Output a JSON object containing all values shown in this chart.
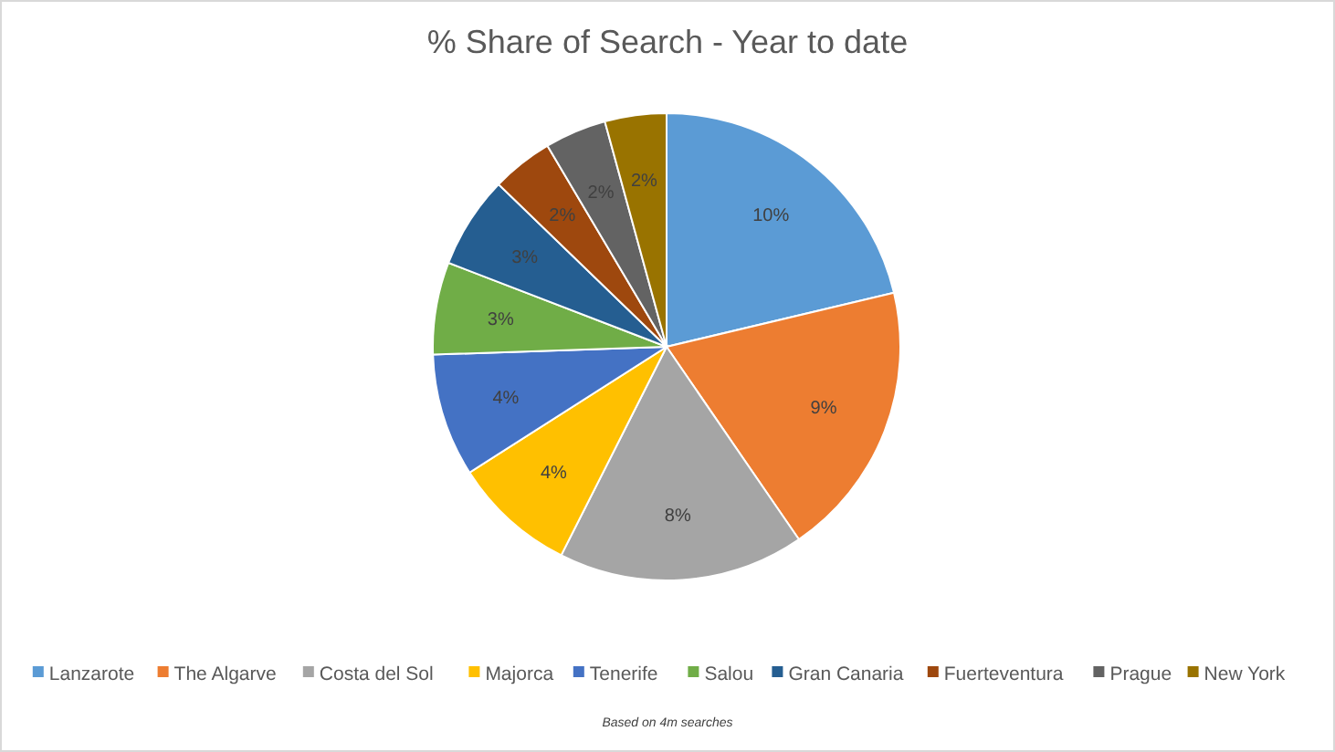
{
  "chart_data": {
    "type": "pie",
    "title": "% Share of Search - Year to date",
    "categories": [
      "Lanzarote",
      "The Algarve",
      "Costa del Sol",
      "Majorca",
      "Tenerife",
      "Salou",
      "Gran Canaria",
      "Fuerteventura",
      "Prague",
      "New York"
    ],
    "values": [
      10,
      9,
      8,
      4,
      4,
      3,
      3,
      2,
      2,
      2
    ],
    "colors": [
      "#5b9bd5",
      "#ed7d31",
      "#a5a5a5",
      "#ffc000",
      "#4472c4",
      "#70ad47",
      "#255e91",
      "#9e480e",
      "#636363",
      "#997300"
    ],
    "value_labels": [
      "10%",
      "9%",
      "8%",
      "4%",
      "4%",
      "3%",
      "3%",
      "2%",
      "2%",
      "2%"
    ],
    "legend": "bottom",
    "annotations": [
      "Based on 4m searches"
    ]
  }
}
